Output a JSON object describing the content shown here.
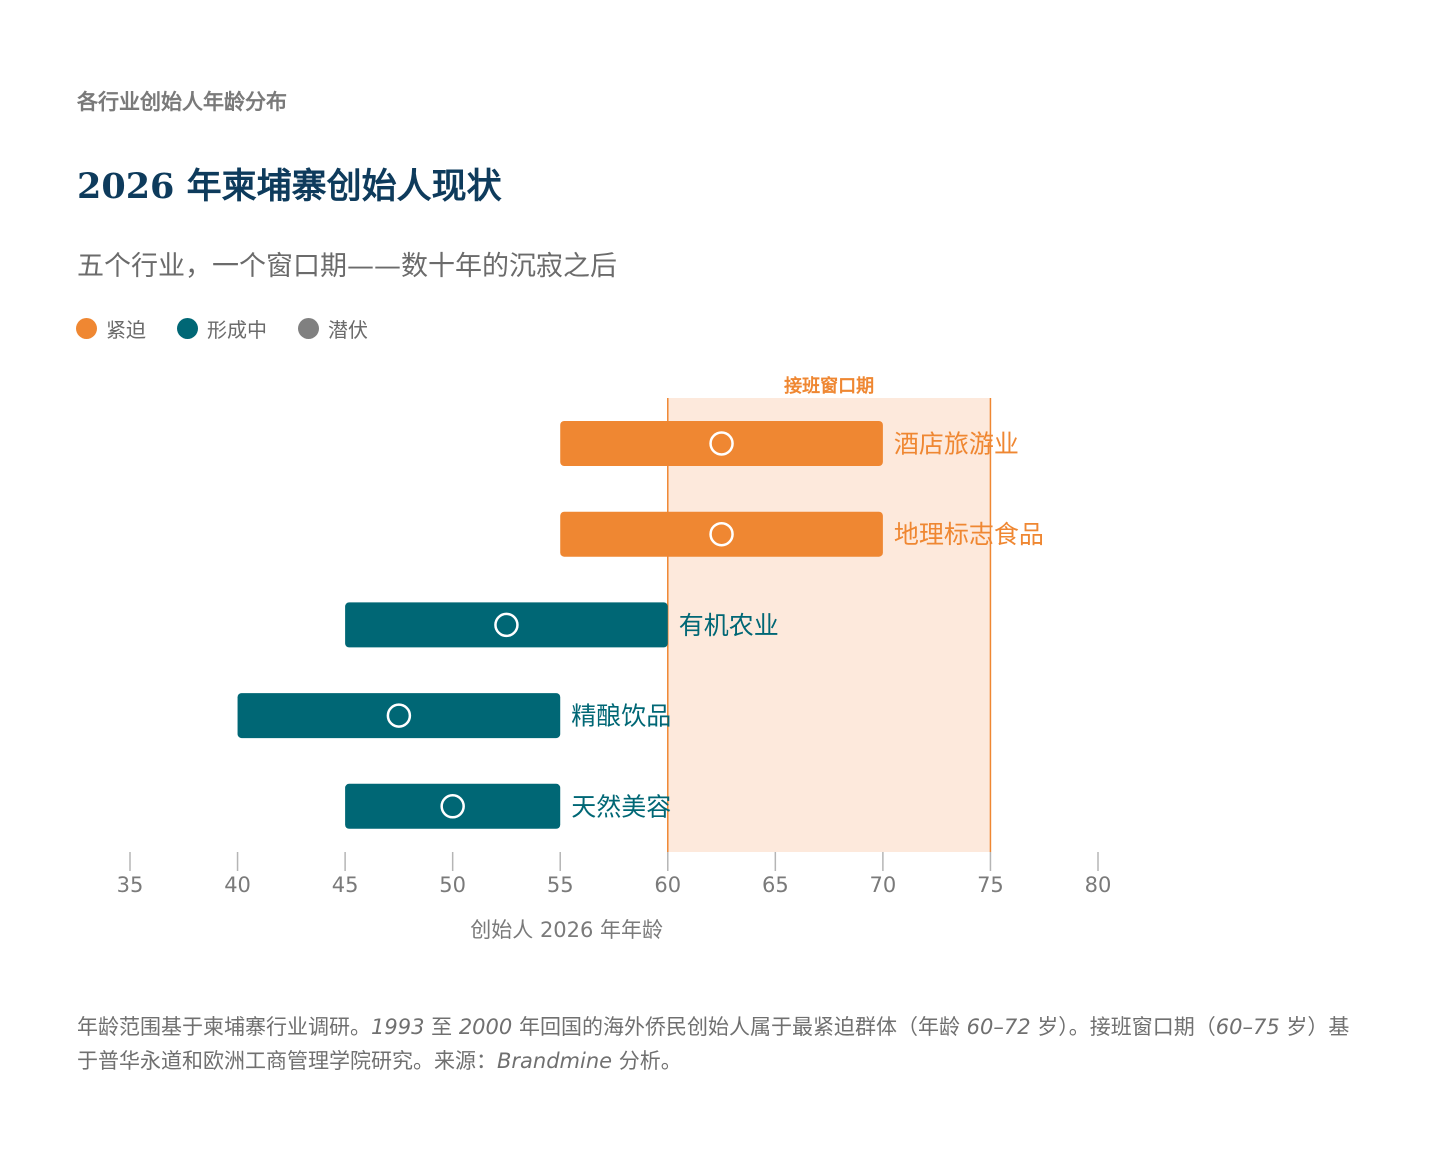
{
  "header": {
    "eyebrow": "各行业创始人年龄分布",
    "title": "2026 年柬埔寨创始人现状",
    "subtitle": "五个行业，一个窗口期——数十年的沉寂之后"
  },
  "legend": [
    {
      "label": "紧迫",
      "color": "#ef8732"
    },
    {
      "label": "形成中",
      "color": "#006775"
    },
    {
      "label": "潜伏",
      "color": "#808080"
    }
  ],
  "colors": {
    "urgent": "#ef8732",
    "forming": "#006775",
    "dormant": "#808080",
    "window_fill": "#fde9dc",
    "window_line": "#ef8732",
    "axis_text": "#7a7a7a"
  },
  "chart_data": {
    "type": "range-bar",
    "xlabel": "创始人 2026 年年龄",
    "xlim": [
      35,
      80
    ],
    "xticks": [
      35,
      40,
      45,
      50,
      55,
      60,
      65,
      70,
      75,
      80
    ],
    "window": {
      "label": "接班窗口期",
      "start": 60,
      "end": 75
    },
    "series": [
      {
        "name": "酒店旅游业",
        "min": 55,
        "max": 70,
        "marker": 62.5,
        "status": "urgent"
      },
      {
        "name": "地理标志食品",
        "min": 55,
        "max": 70,
        "marker": 62.5,
        "status": "urgent"
      },
      {
        "name": "有机农业",
        "min": 45,
        "max": 60,
        "marker": 52.5,
        "status": "forming"
      },
      {
        "name": "精酿饮品",
        "min": 40,
        "max": 55,
        "marker": 47.5,
        "status": "forming"
      },
      {
        "name": "天然美容",
        "min": 45,
        "max": 55,
        "marker": 50,
        "status": "forming"
      }
    ]
  },
  "footnote": {
    "p1": "年龄范围基于柬埔寨行业调研。",
    "y1993": "1993",
    "p2": " 至 ",
    "y2000": "2000",
    "p3": " 年回国的海外侨民创始人属于最紧迫群体（年龄 ",
    "age_range": "60–72",
    "p4": " 岁）。接班窗口期（",
    "window_range": "60–75",
    "p5": " 岁）基于普华永道和欧洲工商管理学院研究。来源：",
    "source": "Brandmine",
    "p6": " 分析。"
  }
}
